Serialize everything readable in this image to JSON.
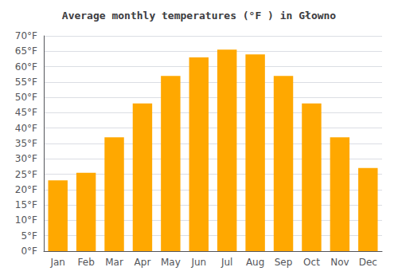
{
  "chart_data": {
    "type": "bar",
    "title": "Average monthly temperatures (°F ) in Głowno",
    "categories": [
      "Jan",
      "Feb",
      "Mar",
      "Apr",
      "May",
      "Jun",
      "Jul",
      "Aug",
      "Sep",
      "Oct",
      "Nov",
      "Dec"
    ],
    "values": [
      23,
      25.5,
      37,
      48,
      57,
      63,
      65.5,
      64,
      57,
      48,
      37,
      27
    ],
    "color": "#FFA800",
    "ylim": [
      0,
      70
    ],
    "yticks": [
      {
        "value": 0,
        "label": "0°F"
      },
      {
        "value": 5,
        "label": "5°F"
      },
      {
        "value": 10,
        "label": "10°F"
      },
      {
        "value": 15,
        "label": "15°F"
      },
      {
        "value": 20,
        "label": "20°F"
      },
      {
        "value": 25,
        "label": "25°F"
      },
      {
        "value": 30,
        "label": "30°F"
      },
      {
        "value": 35,
        "label": "35°F"
      },
      {
        "value": 40,
        "label": "40°F"
      },
      {
        "value": 45,
        "label": "45°F"
      },
      {
        "value": 50,
        "label": "50°F"
      },
      {
        "value": 55,
        "label": "55°F"
      },
      {
        "value": 60,
        "label": "60°F"
      },
      {
        "value": 65,
        "label": "65°F"
      },
      {
        "value": 70,
        "label": "70°F"
      }
    ],
    "grid": true
  }
}
